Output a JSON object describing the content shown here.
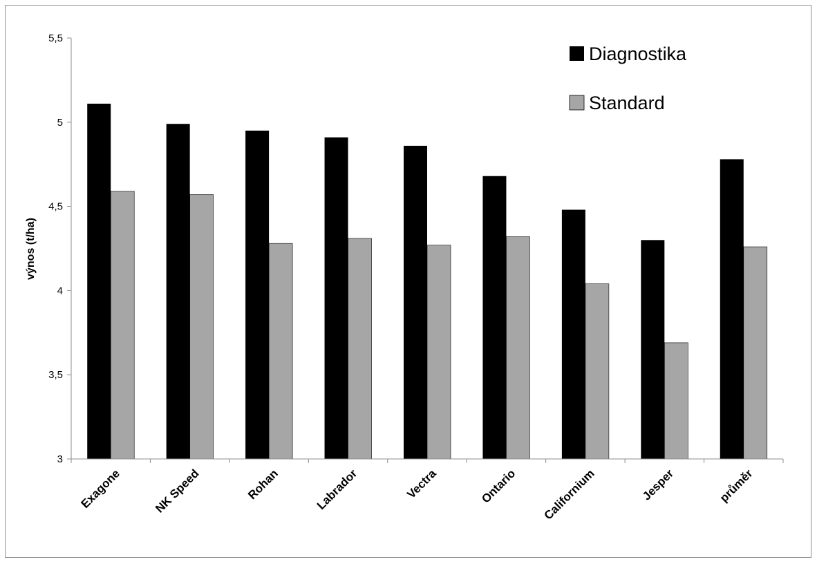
{
  "chart_data": {
    "type": "bar",
    "title": "",
    "xlabel": "",
    "ylabel": "výnos (t/ha)",
    "ylim": [
      3,
      5.5
    ],
    "yticks": [
      "3",
      "3,5",
      "4",
      "4,5",
      "5",
      "5,5"
    ],
    "ytick_values": [
      3,
      3.5,
      4,
      4.5,
      5,
      5.5
    ],
    "grid": false,
    "legend_position": "top-right",
    "categories": [
      "Exagone",
      "NK Speed",
      "Rohan",
      "Labrador",
      "Vectra",
      "Ontario",
      "Californium",
      "Jesper",
      "průměr"
    ],
    "series": [
      {
        "name": "Diagnostika",
        "color": "#000000",
        "values": [
          5.11,
          4.99,
          4.95,
          4.91,
          4.86,
          4.68,
          4.48,
          4.3,
          4.78
        ]
      },
      {
        "name": "Standard",
        "color": "#a6a6a6",
        "values": [
          4.59,
          4.57,
          4.28,
          4.31,
          4.27,
          4.32,
          4.04,
          3.69,
          4.26
        ]
      }
    ]
  }
}
